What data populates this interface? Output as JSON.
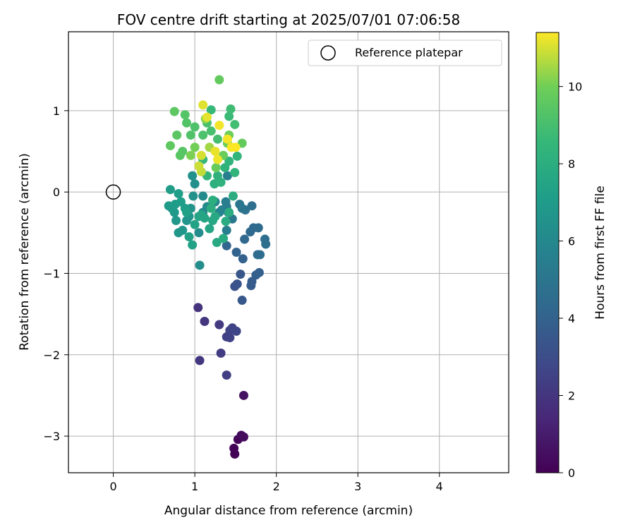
{
  "chart_data": {
    "type": "scatter",
    "title": "FOV centre drift starting at 2025/07/01 07:06:58",
    "xlabel": "Angular distance from reference (arcmin)",
    "ylabel": "Rotation from reference (arcmin)",
    "xlim": [
      -0.55,
      4.85
    ],
    "ylim": [
      -3.45,
      1.97
    ],
    "xticks": [
      0,
      1,
      2,
      3,
      4
    ],
    "yticks": [
      -3,
      -2,
      -1,
      0,
      1
    ],
    "grid": true,
    "legend": {
      "position": "top-right",
      "entries": [
        "Reference platepar"
      ]
    },
    "reference_point": {
      "x": 0,
      "y": 0,
      "label": "Reference platepar"
    },
    "colorbar": {
      "label": "Hours from first FF file",
      "range": [
        0,
        11.4
      ],
      "ticks": [
        0,
        2,
        4,
        6,
        8,
        10
      ],
      "colormap": "viridis"
    },
    "points": [
      {
        "x": 1.49,
        "y": -3.22,
        "t": 0.05
      },
      {
        "x": 1.48,
        "y": -3.15,
        "t": 0.1
      },
      {
        "x": 1.53,
        "y": -3.04,
        "t": 0.2
      },
      {
        "x": 1.57,
        "y": -2.99,
        "t": 0.3
      },
      {
        "x": 1.6,
        "y": -3.01,
        "t": 0.4
      },
      {
        "x": 1.6,
        "y": -2.5,
        "t": 0.6
      },
      {
        "x": 1.04,
        "y": -1.42,
        "t": 1.9
      },
      {
        "x": 1.12,
        "y": -1.59,
        "t": 2.0
      },
      {
        "x": 1.06,
        "y": -2.07,
        "t": 2.1
      },
      {
        "x": 1.3,
        "y": -1.63,
        "t": 2.2
      },
      {
        "x": 1.32,
        "y": -1.98,
        "t": 2.3
      },
      {
        "x": 1.39,
        "y": -2.25,
        "t": 2.35
      },
      {
        "x": 1.39,
        "y": -1.78,
        "t": 2.4
      },
      {
        "x": 1.43,
        "y": -1.79,
        "t": 2.5
      },
      {
        "x": 1.43,
        "y": -1.7,
        "t": 2.55
      },
      {
        "x": 1.46,
        "y": -1.67,
        "t": 2.6
      },
      {
        "x": 1.51,
        "y": -1.71,
        "t": 2.7
      },
      {
        "x": 1.49,
        "y": -1.16,
        "t": 3.2
      },
      {
        "x": 1.52,
        "y": -1.13,
        "t": 3.3
      },
      {
        "x": 1.56,
        "y": -1.01,
        "t": 3.4
      },
      {
        "x": 1.58,
        "y": -1.33,
        "t": 3.5
      },
      {
        "x": 1.69,
        "y": -1.15,
        "t": 3.6
      },
      {
        "x": 1.7,
        "y": -1.1,
        "t": 3.7
      },
      {
        "x": 1.75,
        "y": -1.02,
        "t": 3.8
      },
      {
        "x": 1.79,
        "y": -0.99,
        "t": 3.9
      },
      {
        "x": 1.59,
        "y": -0.82,
        "t": 4.0
      },
      {
        "x": 1.51,
        "y": -0.74,
        "t": 4.1
      },
      {
        "x": 1.39,
        "y": -0.66,
        "t": 4.2
      },
      {
        "x": 1.61,
        "y": -0.58,
        "t": 4.3
      },
      {
        "x": 1.68,
        "y": -0.49,
        "t": 4.35
      },
      {
        "x": 1.72,
        "y": -0.44,
        "t": 4.4
      },
      {
        "x": 1.78,
        "y": -0.44,
        "t": 4.45
      },
      {
        "x": 1.77,
        "y": -0.77,
        "t": 4.5
      },
      {
        "x": 1.8,
        "y": -0.77,
        "t": 4.55
      },
      {
        "x": 1.86,
        "y": -0.58,
        "t": 4.6
      },
      {
        "x": 1.87,
        "y": -0.64,
        "t": 4.65
      },
      {
        "x": 1.7,
        "y": -0.17,
        "t": 4.7
      },
      {
        "x": 1.62,
        "y": -0.22,
        "t": 4.8
      },
      {
        "x": 1.58,
        "y": -0.2,
        "t": 4.9
      },
      {
        "x": 1.55,
        "y": -0.15,
        "t": 5.0
      },
      {
        "x": 1.46,
        "y": -0.33,
        "t": 5.1
      },
      {
        "x": 1.41,
        "y": -0.25,
        "t": 5.2
      },
      {
        "x": 1.39,
        "y": -0.18,
        "t": 5.3
      },
      {
        "x": 1.38,
        "y": -0.12,
        "t": 5.4
      },
      {
        "x": 1.39,
        "y": -0.47,
        "t": 5.45
      },
      {
        "x": 1.4,
        "y": 0.2,
        "t": 5.5
      },
      {
        "x": 1.33,
        "y": -0.22,
        "t": 5.7
      },
      {
        "x": 1.3,
        "y": -0.25,
        "t": 5.8
      },
      {
        "x": 1.25,
        "y": -0.12,
        "t": 5.9
      },
      {
        "x": 1.15,
        "y": -0.18,
        "t": 6.0
      },
      {
        "x": 1.1,
        "y": -0.25,
        "t": 6.1
      },
      {
        "x": 1.1,
        "y": -0.05,
        "t": 6.15
      },
      {
        "x": 1.05,
        "y": -0.5,
        "t": 6.2
      },
      {
        "x": 1.06,
        "y": -0.9,
        "t": 6.3
      },
      {
        "x": 1.0,
        "y": 0.1,
        "t": 6.4
      },
      {
        "x": 0.97,
        "y": 0.2,
        "t": 6.45
      },
      {
        "x": 0.98,
        "y": -0.05,
        "t": 6.5
      },
      {
        "x": 0.95,
        "y": -0.2,
        "t": 6.55
      },
      {
        "x": 0.93,
        "y": -0.3,
        "t": 6.6
      },
      {
        "x": 0.9,
        "y": -0.35,
        "t": 6.65
      },
      {
        "x": 0.85,
        "y": -0.47,
        "t": 6.7
      },
      {
        "x": 0.8,
        "y": -0.5,
        "t": 6.75
      },
      {
        "x": 0.77,
        "y": -0.35,
        "t": 6.8
      },
      {
        "x": 0.75,
        "y": -0.25,
        "t": 6.85
      },
      {
        "x": 0.72,
        "y": -0.2,
        "t": 6.9
      },
      {
        "x": 0.68,
        "y": -0.17,
        "t": 6.95
      },
      {
        "x": 0.7,
        "y": 0.03,
        "t": 7.0
      },
      {
        "x": 0.76,
        "y": -0.15,
        "t": 7.05
      },
      {
        "x": 0.8,
        "y": -0.02,
        "t": 7.1
      },
      {
        "x": 0.83,
        "y": -0.12,
        "t": 7.15
      },
      {
        "x": 0.88,
        "y": -0.2,
        "t": 7.2
      },
      {
        "x": 0.9,
        "y": -0.25,
        "t": 7.25
      },
      {
        "x": 0.93,
        "y": -0.55,
        "t": 7.3
      },
      {
        "x": 0.97,
        "y": -0.65,
        "t": 7.35
      },
      {
        "x": 1.0,
        "y": -0.4,
        "t": 7.4
      },
      {
        "x": 1.05,
        "y": -0.3,
        "t": 7.45
      },
      {
        "x": 1.08,
        "y": -0.28,
        "t": 7.5
      },
      {
        "x": 1.12,
        "y": -0.32,
        "t": 7.55
      },
      {
        "x": 1.18,
        "y": -0.45,
        "t": 7.6
      },
      {
        "x": 1.22,
        "y": -0.35,
        "t": 7.65
      },
      {
        "x": 1.25,
        "y": -0.3,
        "t": 7.7
      },
      {
        "x": 1.27,
        "y": -0.62,
        "t": 7.75
      },
      {
        "x": 1.35,
        "y": -0.57,
        "t": 7.8
      },
      {
        "x": 1.38,
        "y": -0.36,
        "t": 7.85
      },
      {
        "x": 1.42,
        "y": -0.25,
        "t": 7.9
      },
      {
        "x": 1.47,
        "y": -0.05,
        "t": 7.95
      },
      {
        "x": 1.2,
        "y": -0.2,
        "t": 8.0
      },
      {
        "x": 1.22,
        "y": -0.1,
        "t": 8.05
      },
      {
        "x": 1.24,
        "y": 0.1,
        "t": 8.1
      },
      {
        "x": 1.28,
        "y": 0.2,
        "t": 8.15
      },
      {
        "x": 1.32,
        "y": 0.12,
        "t": 8.2
      },
      {
        "x": 1.37,
        "y": 0.3,
        "t": 8.25
      },
      {
        "x": 1.42,
        "y": 0.38,
        "t": 8.3
      },
      {
        "x": 1.49,
        "y": 0.24,
        "t": 8.35
      },
      {
        "x": 1.52,
        "y": 0.44,
        "t": 8.4
      },
      {
        "x": 1.15,
        "y": 0.2,
        "t": 8.45
      },
      {
        "x": 1.1,
        "y": 0.4,
        "t": 8.5
      },
      {
        "x": 1.2,
        "y": 1.01,
        "t": 8.6
      },
      {
        "x": 1.42,
        "y": 0.93,
        "t": 8.7
      },
      {
        "x": 1.44,
        "y": 1.02,
        "t": 8.8
      },
      {
        "x": 1.49,
        "y": 0.83,
        "t": 8.9
      },
      {
        "x": 1.28,
        "y": 0.65,
        "t": 9.0
      },
      {
        "x": 1.2,
        "y": 0.75,
        "t": 9.05
      },
      {
        "x": 1.15,
        "y": 0.85,
        "t": 9.1
      },
      {
        "x": 1.1,
        "y": 0.7,
        "t": 9.15
      },
      {
        "x": 1.0,
        "y": 0.8,
        "t": 9.2
      },
      {
        "x": 0.95,
        "y": 0.7,
        "t": 9.25
      },
      {
        "x": 0.9,
        "y": 0.85,
        "t": 9.3
      },
      {
        "x": 0.88,
        "y": 0.95,
        "t": 9.35
      },
      {
        "x": 0.85,
        "y": 0.5,
        "t": 9.4
      },
      {
        "x": 0.82,
        "y": 0.45,
        "t": 9.45
      },
      {
        "x": 0.78,
        "y": 0.7,
        "t": 9.5
      },
      {
        "x": 0.75,
        "y": 0.99,
        "t": 9.55
      },
      {
        "x": 0.7,
        "y": 0.57,
        "t": 9.6
      },
      {
        "x": 1.3,
        "y": 1.38,
        "t": 9.7
      },
      {
        "x": 1.58,
        "y": 0.6,
        "t": 9.75
      },
      {
        "x": 1.26,
        "y": 0.3,
        "t": 9.8
      },
      {
        "x": 1.35,
        "y": 0.45,
        "t": 9.85
      },
      {
        "x": 1.4,
        "y": 0.6,
        "t": 9.9
      },
      {
        "x": 1.42,
        "y": 0.7,
        "t": 9.95
      },
      {
        "x": 1.0,
        "y": 0.55,
        "t": 10.0
      },
      {
        "x": 0.95,
        "y": 0.45,
        "t": 10.1
      },
      {
        "x": 1.13,
        "y": 0.9,
        "t": 10.3
      },
      {
        "x": 1.18,
        "y": 0.55,
        "t": 10.5
      },
      {
        "x": 1.08,
        "y": 0.25,
        "t": 10.8
      },
      {
        "x": 1.05,
        "y": 0.32,
        "t": 10.9
      },
      {
        "x": 1.08,
        "y": 0.45,
        "t": 11.0
      },
      {
        "x": 1.1,
        "y": 1.07,
        "t": 11.1
      },
      {
        "x": 1.15,
        "y": 0.92,
        "t": 11.15
      },
      {
        "x": 1.25,
        "y": 0.5,
        "t": 11.2
      },
      {
        "x": 1.28,
        "y": 0.4,
        "t": 11.25
      },
      {
        "x": 1.3,
        "y": 0.82,
        "t": 11.3
      },
      {
        "x": 1.4,
        "y": 0.65,
        "t": 11.3
      },
      {
        "x": 1.45,
        "y": 0.55,
        "t": 11.35
      },
      {
        "x": 1.5,
        "y": 0.55,
        "t": 11.4
      }
    ]
  }
}
